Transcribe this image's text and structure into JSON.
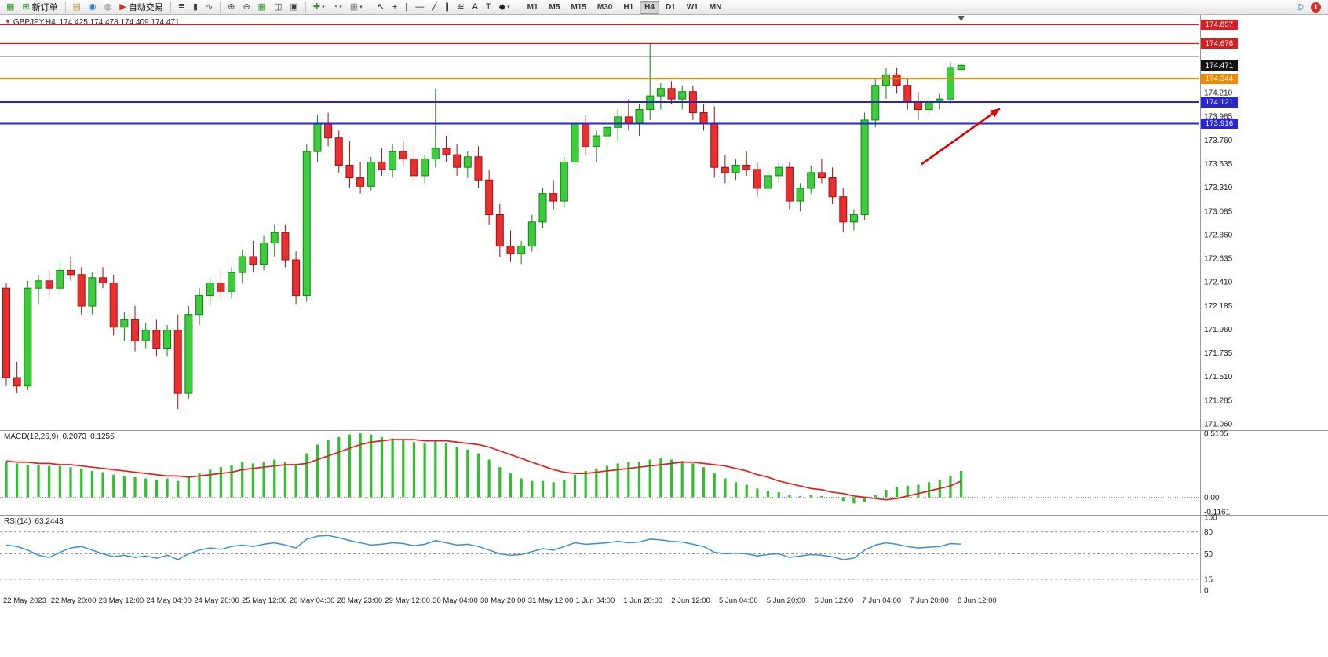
{
  "toolbar": {
    "groups": [
      {
        "items": [
          {
            "name": "chart-window-icon",
            "glyph": "▦",
            "color": "#2f8f2f"
          },
          {
            "name": "new-order-button",
            "glyph": "⊞",
            "color": "#2f8f2f",
            "label": "新订单"
          }
        ]
      },
      {
        "items": [
          {
            "name": "print-icon",
            "glyph": "▤",
            "color": "#b8902c"
          },
          {
            "name": "profile-icon",
            "glyph": "◉",
            "color": "#2f7fd0"
          },
          {
            "name": "support-icon",
            "glyph": "◍",
            "color": "#8a8a8a"
          },
          {
            "name": "auto-trading-button",
            "glyph": "▶",
            "color": "#d03030",
            "label": "自动交易"
          }
        ]
      },
      {
        "items": [
          {
            "name": "bars-chart-icon",
            "glyph": "≣",
            "color": "#444444"
          },
          {
            "name": "candlestick-chart-icon",
            "glyph": "▮",
            "color": "#444444"
          },
          {
            "name": "line-chart-icon",
            "glyph": "∿",
            "color": "#444444"
          }
        ]
      },
      {
        "items": [
          {
            "name": "zoom-in-icon",
            "glyph": "⊕",
            "color": "#444444"
          },
          {
            "name": "zoom-out-icon",
            "glyph": "⊖",
            "color": "#444444"
          },
          {
            "name": "tile-windows-icon",
            "glyph": "▦",
            "color": "#2f8f2f"
          },
          {
            "name": "cascade-windows-icon",
            "glyph": "◫",
            "color": "#444444"
          },
          {
            "name": "auto-arrange-icon",
            "glyph": "▣",
            "color": "#444444"
          }
        ]
      },
      {
        "items": [
          {
            "name": "indicators-dropdown",
            "glyph": "✚",
            "color": "#2f8f2f",
            "dropdown": true
          },
          {
            "name": "periods-dropdown",
            "glyph": "◔",
            "color": "#2f7fd0",
            "dropdown": true
          },
          {
            "name": "templates-dropdown",
            "glyph": "▦",
            "color": "#777777",
            "dropdown": true
          }
        ]
      },
      {
        "items": [
          {
            "name": "cursor-icon",
            "glyph": "↖",
            "color": "#222222"
          },
          {
            "name": "crosshair-icon",
            "glyph": "+",
            "color": "#222222"
          },
          {
            "name": "vertical-line-icon",
            "glyph": "|",
            "color": "#222222"
          },
          {
            "name": "horizontal-line-icon",
            "glyph": "—",
            "color": "#222222"
          },
          {
            "name": "trendline-icon",
            "glyph": "╱",
            "color": "#222222"
          },
          {
            "name": "channel-icon",
            "glyph": "∥",
            "color": "#222222"
          },
          {
            "name": "fibonacci-icon",
            "glyph": "≋",
            "color": "#222222"
          },
          {
            "name": "text-icon",
            "glyph": "A",
            "color": "#222222"
          },
          {
            "name": "text-label-icon",
            "glyph": "T",
            "color": "#222222"
          },
          {
            "name": "shapes-dropdown",
            "glyph": "◆",
            "color": "#222222",
            "dropdown": true
          }
        ]
      }
    ],
    "timeframes": [
      {
        "name": "timeframe-m1-button",
        "label": "M1"
      },
      {
        "name": "timeframe-m5-button",
        "label": "M5"
      },
      {
        "name": "timeframe-m15-button",
        "label": "M15"
      },
      {
        "name": "timeframe-m30-button",
        "label": "M30"
      },
      {
        "name": "timeframe-h1-button",
        "label": "H1"
      },
      {
        "name": "timeframe-h4-button",
        "label": "H4",
        "active": true
      },
      {
        "name": "timeframe-d1-button",
        "label": "D1"
      },
      {
        "name": "timeframe-w1-button",
        "label": "W1"
      },
      {
        "name": "timeframe-mn-button",
        "label": "MN"
      }
    ],
    "right_items": [
      {
        "name": "search-icon",
        "glyph": "◎",
        "color": "#2f7fd0"
      },
      {
        "name": "notification-badge",
        "label": "1",
        "color": "#d93025"
      }
    ]
  },
  "chart_data": [
    {
      "type": "candlestick",
      "symbol": "GBPJPY,H4",
      "ohlc_text": "174.425 174.478 174.409 174.471",
      "ylim": [
        171.0,
        174.95
      ],
      "y_ticks": [
        "174.210",
        "173.985",
        "173.760",
        "173.535",
        "173.310",
        "173.085",
        "172.860",
        "172.635",
        "172.410",
        "172.185",
        "171.960",
        "171.735",
        "171.510",
        "171.285",
        "171.060"
      ],
      "x_labels": [
        "22 May 2023",
        "22 May 20:00",
        "23 May 12:00",
        "24 May 04:00",
        "24 May 20:00",
        "25 May 12:00",
        "26 May 04:00",
        "28 May 23:00",
        "29 May 12:00",
        "30 May 04:00",
        "30 May 20:00",
        "31 May 12:00",
        "1 Jun 04:00",
        "1 Jun 20:00",
        "2 Jun 12:00",
        "5 Jun 04:00",
        "5 Jun 20:00",
        "6 Jun 12:00",
        "7 Jun 04:00",
        "7 Jun 20:00",
        "8 Jun 12:00"
      ],
      "up_color": "#3ecb3e",
      "up_border": "#0e860e",
      "down_color": "#e83030",
      "down_border": "#a01010",
      "hlines": [
        {
          "price": 174.857,
          "color": "#d42020",
          "width": 1.4,
          "label": "174.857"
        },
        {
          "price": 174.678,
          "color": "#d42020",
          "width": 1.4,
          "label": "174.678"
        },
        {
          "price": 174.553,
          "color": "#3a3a3a",
          "width": 1.2
        },
        {
          "price": 174.344,
          "color": "#f08a00",
          "width": 2,
          "label": "174.344"
        },
        {
          "price": 174.121,
          "color": "#2626d8",
          "width": 2,
          "label": "174.121"
        },
        {
          "price": 173.916,
          "color": "#2626d8",
          "width": 2,
          "label": "173.916"
        }
      ],
      "current_price_tag": {
        "label": "174.471",
        "color": "#141414"
      },
      "arrow": {
        "from_bar": 85.3,
        "from_price": 173.53,
        "to_bar": 92.6,
        "to_price": 174.06,
        "color": "#e00000"
      },
      "shift_marker_bar": 89,
      "candles": [
        [
          172.35,
          172.4,
          171.42,
          171.5
        ],
        [
          171.5,
          171.65,
          171.35,
          171.42
        ],
        [
          171.42,
          172.42,
          171.38,
          172.35
        ],
        [
          172.35,
          172.48,
          172.2,
          172.42
        ],
        [
          172.42,
          172.52,
          172.28,
          172.35
        ],
        [
          172.35,
          172.6,
          172.3,
          172.52
        ],
        [
          172.52,
          172.65,
          172.42,
          172.48
        ],
        [
          172.48,
          172.55,
          172.1,
          172.18
        ],
        [
          172.18,
          172.5,
          172.1,
          172.45
        ],
        [
          172.45,
          172.55,
          172.35,
          172.4
        ],
        [
          172.4,
          172.48,
          171.9,
          171.98
        ],
        [
          171.98,
          172.12,
          171.85,
          172.05
        ],
        [
          172.05,
          172.18,
          171.75,
          171.85
        ],
        [
          171.85,
          172.02,
          171.78,
          171.95
        ],
        [
          171.95,
          172.05,
          171.7,
          171.78
        ],
        [
          171.78,
          172.0,
          171.7,
          171.95
        ],
        [
          171.95,
          172.1,
          171.2,
          171.35
        ],
        [
          171.35,
          172.18,
          171.3,
          172.1
        ],
        [
          172.1,
          172.35,
          172.0,
          172.28
        ],
        [
          172.28,
          172.45,
          172.18,
          172.4
        ],
        [
          172.4,
          172.52,
          172.25,
          172.32
        ],
        [
          172.32,
          172.55,
          172.25,
          172.5
        ],
        [
          172.5,
          172.72,
          172.4,
          172.65
        ],
        [
          172.65,
          172.8,
          172.5,
          172.58
        ],
        [
          172.58,
          172.85,
          172.52,
          172.78
        ],
        [
          172.78,
          172.95,
          172.65,
          172.88
        ],
        [
          172.88,
          172.95,
          172.55,
          172.62
        ],
        [
          172.62,
          172.7,
          172.2,
          172.28
        ],
        [
          172.28,
          173.72,
          172.22,
          173.65
        ],
        [
          173.65,
          174.0,
          173.55,
          173.92
        ],
        [
          173.92,
          174.02,
          173.7,
          173.78
        ],
        [
          173.78,
          173.85,
          173.45,
          173.52
        ],
        [
          173.52,
          173.75,
          173.3,
          173.4
        ],
        [
          173.4,
          173.55,
          173.25,
          173.32
        ],
        [
          173.32,
          173.6,
          173.28,
          173.55
        ],
        [
          173.55,
          173.68,
          173.42,
          173.48
        ],
        [
          173.48,
          173.72,
          173.4,
          173.65
        ],
        [
          173.65,
          173.75,
          173.52,
          173.58
        ],
        [
          173.58,
          173.7,
          173.35,
          173.42
        ],
        [
          173.42,
          173.62,
          173.35,
          173.58
        ],
        [
          173.58,
          174.25,
          173.5,
          173.68
        ],
        [
          173.68,
          173.8,
          173.55,
          173.62
        ],
        [
          173.62,
          173.72,
          173.42,
          173.5
        ],
        [
          173.5,
          173.65,
          173.4,
          173.6
        ],
        [
          173.6,
          173.7,
          173.3,
          173.38
        ],
        [
          173.38,
          173.48,
          172.95,
          173.05
        ],
        [
          173.05,
          173.15,
          172.65,
          172.75
        ],
        [
          172.75,
          172.9,
          172.6,
          172.68
        ],
        [
          172.68,
          172.8,
          172.58,
          172.75
        ],
        [
          172.75,
          173.05,
          172.7,
          172.98
        ],
        [
          172.98,
          173.3,
          172.92,
          173.25
        ],
        [
          173.25,
          173.38,
          173.1,
          173.18
        ],
        [
          173.18,
          173.6,
          173.12,
          173.55
        ],
        [
          173.55,
          173.98,
          173.48,
          173.92
        ],
        [
          173.92,
          174.0,
          173.62,
          173.7
        ],
        [
          173.7,
          173.85,
          173.55,
          173.8
        ],
        [
          173.8,
          173.92,
          173.65,
          173.88
        ],
        [
          173.88,
          174.05,
          173.75,
          173.98
        ],
        [
          173.98,
          174.15,
          173.85,
          173.92
        ],
        [
          173.92,
          174.1,
          173.8,
          174.05
        ],
        [
          174.05,
          174.68,
          173.95,
          174.18
        ],
        [
          174.18,
          174.3,
          174.05,
          174.25
        ],
        [
          174.25,
          174.32,
          174.1,
          174.15
        ],
        [
          174.15,
          174.28,
          174.05,
          174.22
        ],
        [
          174.22,
          174.28,
          173.95,
          174.02
        ],
        [
          174.02,
          174.1,
          173.85,
          173.92
        ],
        [
          173.92,
          174.08,
          173.4,
          173.5
        ],
        [
          173.5,
          173.62,
          173.35,
          173.45
        ],
        [
          173.45,
          173.58,
          173.38,
          173.52
        ],
        [
          173.52,
          173.65,
          173.42,
          173.48
        ],
        [
          173.48,
          173.55,
          173.22,
          173.3
        ],
        [
          173.3,
          173.48,
          173.25,
          173.42
        ],
        [
          173.42,
          173.55,
          173.35,
          173.5
        ],
        [
          173.5,
          173.55,
          173.1,
          173.18
        ],
        [
          173.18,
          173.35,
          173.08,
          173.3
        ],
        [
          173.3,
          173.52,
          173.25,
          173.45
        ],
        [
          173.45,
          173.58,
          173.35,
          173.4
        ],
        [
          173.4,
          173.5,
          173.15,
          173.22
        ],
        [
          173.22,
          173.3,
          172.88,
          172.98
        ],
        [
          172.98,
          173.1,
          172.9,
          173.05
        ],
        [
          173.05,
          174.02,
          173.0,
          173.95
        ],
        [
          173.95,
          174.35,
          173.88,
          174.28
        ],
        [
          174.28,
          174.45,
          174.15,
          174.38
        ],
        [
          174.38,
          174.45,
          174.2,
          174.28
        ],
        [
          174.28,
          174.35,
          174.05,
          174.12
        ],
        [
          174.12,
          174.22,
          173.95,
          174.05
        ],
        [
          174.05,
          174.18,
          174.0,
          174.12
        ],
        [
          174.12,
          174.2,
          174.05,
          174.15
        ],
        [
          174.15,
          174.5,
          174.1,
          174.45
        ],
        [
          174.43,
          174.48,
          174.41,
          174.47
        ]
      ]
    },
    {
      "type": "bar",
      "title": "MACD(12,26,9)",
      "value1": "0.2073",
      "value2": "0.1255",
      "ylim": [
        -0.1161,
        0.5105
      ],
      "y_ticks": [
        "0.5105",
        "0.00",
        "-0.1161"
      ],
      "bar_color": "#2fbf2f",
      "signal_color": "#e02020",
      "values": [
        0.28,
        0.27,
        0.26,
        0.26,
        0.25,
        0.25,
        0.24,
        0.23,
        0.21,
        0.2,
        0.18,
        0.17,
        0.16,
        0.15,
        0.14,
        0.15,
        0.13,
        0.16,
        0.19,
        0.22,
        0.24,
        0.26,
        0.28,
        0.27,
        0.28,
        0.3,
        0.28,
        0.26,
        0.35,
        0.42,
        0.46,
        0.48,
        0.5,
        0.51,
        0.5,
        0.48,
        0.47,
        0.46,
        0.44,
        0.43,
        0.45,
        0.43,
        0.4,
        0.38,
        0.35,
        0.3,
        0.24,
        0.19,
        0.15,
        0.13,
        0.13,
        0.12,
        0.14,
        0.18,
        0.21,
        0.23,
        0.25,
        0.27,
        0.28,
        0.28,
        0.3,
        0.31,
        0.3,
        0.29,
        0.27,
        0.24,
        0.19,
        0.15,
        0.12,
        0.1,
        0.07,
        0.05,
        0.04,
        0.02,
        0.01,
        0.02,
        0.01,
        -0.01,
        -0.03,
        -0.05,
        -0.04,
        0.02,
        0.06,
        0.08,
        0.09,
        0.1,
        0.12,
        0.14,
        0.17,
        0.21
      ],
      "signal": [
        0.29,
        0.28,
        0.28,
        0.27,
        0.27,
        0.26,
        0.26,
        0.25,
        0.24,
        0.23,
        0.22,
        0.21,
        0.2,
        0.19,
        0.18,
        0.17,
        0.17,
        0.16,
        0.17,
        0.18,
        0.19,
        0.2,
        0.22,
        0.23,
        0.24,
        0.25,
        0.26,
        0.26,
        0.27,
        0.3,
        0.33,
        0.36,
        0.39,
        0.42,
        0.44,
        0.45,
        0.46,
        0.46,
        0.46,
        0.45,
        0.45,
        0.45,
        0.44,
        0.43,
        0.42,
        0.4,
        0.37,
        0.34,
        0.31,
        0.28,
        0.25,
        0.22,
        0.2,
        0.19,
        0.19,
        0.2,
        0.21,
        0.22,
        0.23,
        0.24,
        0.25,
        0.26,
        0.27,
        0.28,
        0.28,
        0.27,
        0.26,
        0.25,
        0.23,
        0.21,
        0.18,
        0.16,
        0.13,
        0.11,
        0.09,
        0.07,
        0.06,
        0.04,
        0.03,
        0.01,
        0.0,
        -0.01,
        -0.02,
        -0.01,
        0.01,
        0.03,
        0.05,
        0.07,
        0.09,
        0.13
      ]
    },
    {
      "type": "line",
      "title": "RSI(14)",
      "value": "63.2443",
      "ylim": [
        0,
        100
      ],
      "y_ticks": [
        "100",
        "80",
        "50",
        "15",
        "0"
      ],
      "levels": [
        80,
        50,
        15
      ],
      "line_color": "#3d8fd1",
      "values": [
        62,
        60,
        55,
        48,
        45,
        52,
        58,
        60,
        55,
        50,
        46,
        48,
        45,
        47,
        44,
        48,
        42,
        50,
        55,
        58,
        56,
        60,
        62,
        60,
        63,
        65,
        62,
        58,
        70,
        74,
        75,
        72,
        68,
        65,
        62,
        63,
        65,
        64,
        61,
        63,
        68,
        65,
        62,
        63,
        60,
        55,
        50,
        48,
        49,
        53,
        57,
        55,
        60,
        65,
        63,
        64,
        65,
        67,
        65,
        66,
        70,
        69,
        67,
        66,
        63,
        60,
        52,
        50,
        51,
        50,
        47,
        49,
        50,
        45,
        47,
        49,
        48,
        46,
        42,
        44,
        55,
        62,
        65,
        63,
        60,
        58,
        59,
        60,
        64,
        63.24
      ]
    }
  ]
}
